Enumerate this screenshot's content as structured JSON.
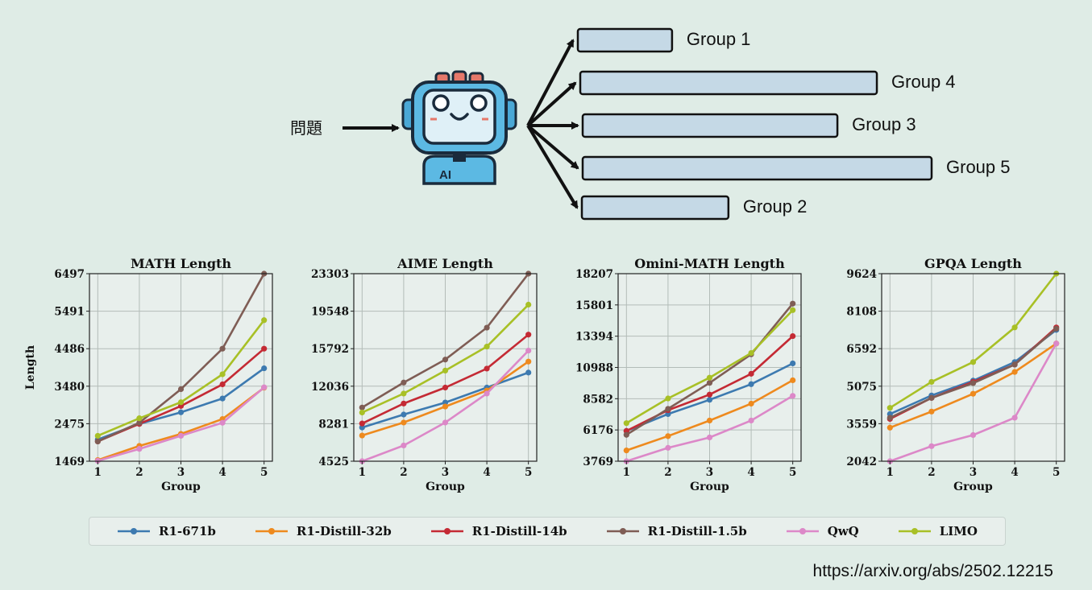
{
  "diagram": {
    "question_label": "問題",
    "robot_badge": "AI",
    "groups": [
      {
        "name": "Group 1",
        "bar_fraction": 0.27
      },
      {
        "name": "Group 4",
        "bar_fraction": 0.85
      },
      {
        "name": "Group 3",
        "bar_fraction": 0.73
      },
      {
        "name": "Group 5",
        "bar_fraction": 1.0
      },
      {
        "name": "Group 2",
        "bar_fraction": 0.42
      }
    ],
    "bar_fill": "#c5d9e6",
    "bar_stroke": "#111111"
  },
  "chart_data": [
    {
      "type": "line",
      "title": "MATH Length",
      "xlabel": "Group",
      "ylabel": "Length",
      "x": [
        1,
        2,
        3,
        4,
        5
      ],
      "yticks": [
        1469,
        2475,
        3480,
        4486,
        5491,
        6497
      ],
      "ylim": [
        1469,
        6497
      ],
      "grid": true,
      "series": [
        {
          "name": "R1-671b",
          "values": [
            2050,
            2470,
            2780,
            3150,
            3960
          ]
        },
        {
          "name": "R1-Distill-32b",
          "values": [
            1500,
            1880,
            2200,
            2600,
            3440
          ]
        },
        {
          "name": "R1-Distill-14b",
          "values": [
            2000,
            2470,
            2950,
            3530,
            4486
          ]
        },
        {
          "name": "R1-Distill-1.5b",
          "values": [
            2000,
            2500,
            3400,
            4486,
            6497
          ]
        },
        {
          "name": "QwQ",
          "values": [
            1480,
            1800,
            2150,
            2500,
            3450
          ]
        },
        {
          "name": "LIMO",
          "values": [
            2150,
            2620,
            3050,
            3800,
            5250
          ]
        }
      ]
    },
    {
      "type": "line",
      "title": "AIME Length",
      "xlabel": "Group",
      "ylabel": "",
      "x": [
        1,
        2,
        3,
        4,
        5
      ],
      "yticks": [
        4525,
        8281,
        12036,
        15792,
        19548,
        23303
      ],
      "ylim": [
        4525,
        23303
      ],
      "grid": true,
      "series": [
        {
          "name": "R1-671b",
          "values": [
            7900,
            9200,
            10400,
            11900,
            13400
          ]
        },
        {
          "name": "R1-Distill-32b",
          "values": [
            7100,
            8400,
            10000,
            11600,
            14500
          ]
        },
        {
          "name": "R1-Distill-14b",
          "values": [
            8300,
            10300,
            11900,
            13800,
            17200
          ]
        },
        {
          "name": "R1-Distill-1.5b",
          "values": [
            9900,
            12400,
            14700,
            17900,
            23303
          ]
        },
        {
          "name": "QwQ",
          "values": [
            4525,
            6100,
            8400,
            11300,
            15600
          ]
        },
        {
          "name": "LIMO",
          "values": [
            9400,
            11300,
            13600,
            16000,
            20200
          ]
        }
      ]
    },
    {
      "type": "line",
      "title": "Omini-MATH Length",
      "xlabel": "Group",
      "ylabel": "",
      "x": [
        1,
        2,
        3,
        4,
        5
      ],
      "yticks": [
        3769,
        6176,
        8582,
        10988,
        13394,
        15801,
        18207
      ],
      "ylim": [
        3769,
        18207
      ],
      "grid": true,
      "series": [
        {
          "name": "R1-671b",
          "values": [
            6100,
            7400,
            8500,
            9700,
            11300
          ]
        },
        {
          "name": "R1-Distill-32b",
          "values": [
            4600,
            5700,
            6900,
            8200,
            10000
          ]
        },
        {
          "name": "R1-Distill-14b",
          "values": [
            6100,
            7700,
            8900,
            10500,
            13400
          ]
        },
        {
          "name": "R1-Distill-1.5b",
          "values": [
            5800,
            7800,
            9800,
            12000,
            15900
          ]
        },
        {
          "name": "QwQ",
          "values": [
            3769,
            4800,
            5600,
            6900,
            8800
          ]
        },
        {
          "name": "LIMO",
          "values": [
            6700,
            8600,
            10200,
            12100,
            15400
          ]
        }
      ]
    },
    {
      "type": "line",
      "title": "GPQA Length",
      "xlabel": "Group",
      "ylabel": "",
      "x": [
        1,
        2,
        3,
        4,
        5
      ],
      "yticks": [
        2042,
        3559,
        5075,
        6592,
        8108,
        9624
      ],
      "ylim": [
        2042,
        9624
      ],
      "grid": true,
      "series": [
        {
          "name": "R1-671b",
          "values": [
            3950,
            4700,
            5300,
            6050,
            7350
          ]
        },
        {
          "name": "R1-Distill-32b",
          "values": [
            3400,
            4050,
            4770,
            5650,
            6800
          ]
        },
        {
          "name": "R1-Distill-14b",
          "values": [
            3750,
            4600,
            5250,
            5950,
            7450
          ]
        },
        {
          "name": "R1-Distill-1.5b",
          "values": [
            3800,
            4600,
            5200,
            5950,
            7400
          ]
        },
        {
          "name": "QwQ",
          "values": [
            2042,
            2650,
            3100,
            3800,
            6800
          ]
        },
        {
          "name": "LIMO",
          "values": [
            4200,
            5250,
            6050,
            7450,
            9624
          ]
        }
      ]
    }
  ],
  "legend": {
    "placement": "bottom",
    "entries": [
      {
        "name": "R1-671b",
        "color": "#3d7ab0"
      },
      {
        "name": "R1-Distill-32b",
        "color": "#ee8a1e"
      },
      {
        "name": "R1-Distill-14b",
        "color": "#c42a34"
      },
      {
        "name": "R1-Distill-1.5b",
        "color": "#7f5d55"
      },
      {
        "name": "QwQ",
        "color": "#dc88c8"
      },
      {
        "name": "LIMO",
        "color": "#a8c026"
      }
    ]
  },
  "source": "https://arxiv.org/abs/2502.12215"
}
